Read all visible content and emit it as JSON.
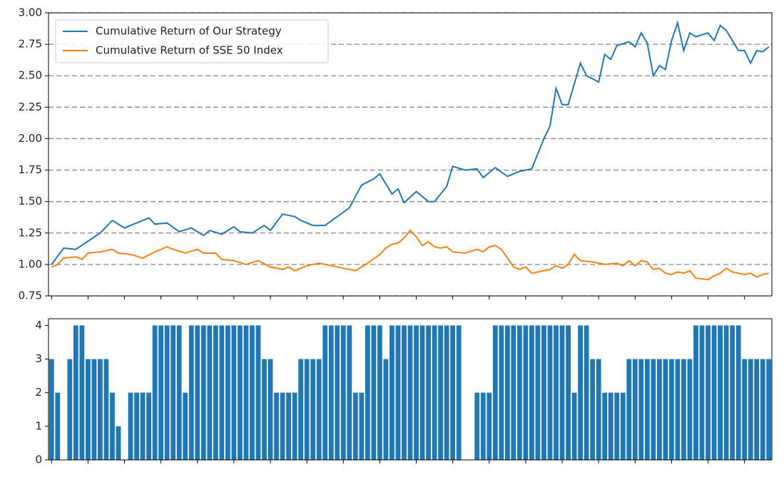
{
  "chart_data": [
    {
      "type": "line",
      "xlim": [
        -0.5,
        118.5
      ],
      "ylim": [
        0.75,
        3.0
      ],
      "xticks": [
        0,
        6,
        12,
        18,
        24,
        30,
        36,
        42,
        48,
        54,
        60,
        66,
        72,
        78,
        84,
        90,
        96,
        102,
        108,
        114
      ],
      "yticks": [
        {
          "value": 0.75,
          "label": "0.75"
        },
        {
          "value": 1.0,
          "label": "1.00"
        },
        {
          "value": 1.25,
          "label": "1.25"
        },
        {
          "value": 1.5,
          "label": "1.50"
        },
        {
          "value": 1.75,
          "label": "1.75"
        },
        {
          "value": 2.0,
          "label": "2.00"
        },
        {
          "value": 2.25,
          "label": "2.25"
        },
        {
          "value": 2.5,
          "label": "2.50"
        },
        {
          "value": 2.75,
          "label": "2.75"
        },
        {
          "value": 3.0,
          "label": "3.00"
        }
      ],
      "grid": true,
      "legend": "upper left",
      "series": [
        {
          "name": "Cumulative Return of Our Strategy",
          "color": "#1f77b4",
          "x": [
            0,
            2,
            4,
            8,
            10,
            12,
            14,
            16,
            17,
            19,
            21,
            23,
            25,
            26,
            28,
            30,
            31,
            33,
            35,
            36,
            38,
            40,
            41,
            43,
            45,
            47,
            49,
            51,
            53,
            54,
            56,
            57,
            58,
            60,
            62,
            63,
            65,
            66,
            68,
            70,
            71,
            73,
            75,
            77,
            78,
            79,
            81,
            82,
            83,
            84,
            85,
            87,
            88,
            90,
            91,
            92,
            93,
            95,
            96,
            97,
            98,
            99,
            100,
            101,
            102,
            103,
            104,
            105,
            106,
            108,
            109,
            110,
            111,
            113,
            114,
            115,
            116,
            117,
            118
          ],
          "values": [
            1.0,
            1.13,
            1.12,
            1.25,
            1.35,
            1.29,
            1.33,
            1.37,
            1.32,
            1.33,
            1.26,
            1.29,
            1.23,
            1.27,
            1.24,
            1.3,
            1.26,
            1.25,
            1.31,
            1.27,
            1.4,
            1.38,
            1.35,
            1.31,
            1.31,
            1.38,
            1.45,
            1.63,
            1.68,
            1.72,
            1.56,
            1.6,
            1.49,
            1.58,
            1.5,
            1.5,
            1.62,
            1.78,
            1.75,
            1.76,
            1.69,
            1.77,
            1.7,
            1.74,
            1.75,
            1.76,
            2.0,
            2.1,
            2.4,
            2.27,
            2.27,
            2.6,
            2.5,
            2.45,
            2.67,
            2.63,
            2.74,
            2.77,
            2.73,
            2.84,
            2.76,
            2.5,
            2.58,
            2.55,
            2.78,
            2.92,
            2.7,
            2.84,
            2.81,
            2.84,
            2.78,
            2.9,
            2.86,
            2.7,
            2.7,
            2.6,
            2.7,
            2.69,
            2.73
          ]
        },
        {
          "name": "Cumulative Return of SSE 50 Index",
          "color": "#ff7f0e",
          "x": [
            0,
            1,
            2,
            4,
            5,
            6,
            8,
            10,
            11,
            13,
            15,
            17,
            19,
            20,
            22,
            24,
            25,
            27,
            28,
            30,
            32,
            34,
            36,
            38,
            39,
            40,
            42,
            44,
            46,
            48,
            50,
            52,
            54,
            55,
            56,
            57,
            58,
            59,
            60,
            61,
            62,
            63,
            64,
            65,
            66,
            68,
            70,
            71,
            72,
            73,
            74,
            75,
            76,
            77,
            78,
            79,
            80,
            82,
            83,
            84,
            85,
            86,
            87,
            89,
            90,
            91,
            93,
            94,
            95,
            96,
            97,
            98,
            99,
            100,
            101,
            102,
            103,
            104,
            105,
            106,
            108,
            109,
            110,
            111,
            112,
            113,
            114,
            115,
            116,
            117,
            118
          ],
          "values": [
            0.98,
            1.0,
            1.05,
            1.06,
            1.04,
            1.09,
            1.1,
            1.12,
            1.09,
            1.08,
            1.05,
            1.1,
            1.14,
            1.12,
            1.09,
            1.12,
            1.09,
            1.09,
            1.04,
            1.03,
            1.0,
            1.03,
            0.98,
            0.96,
            0.98,
            0.95,
            0.99,
            1.01,
            0.99,
            0.97,
            0.95,
            1.01,
            1.08,
            1.13,
            1.16,
            1.17,
            1.21,
            1.27,
            1.22,
            1.15,
            1.18,
            1.14,
            1.13,
            1.14,
            1.1,
            1.09,
            1.12,
            1.1,
            1.14,
            1.15,
            1.12,
            1.05,
            0.98,
            0.96,
            0.98,
            0.93,
            0.94,
            0.96,
            0.99,
            0.97,
            1.0,
            1.08,
            1.03,
            1.02,
            1.01,
            1.0,
            1.01,
            0.99,
            1.03,
            0.99,
            1.03,
            1.02,
            0.96,
            0.97,
            0.93,
            0.92,
            0.94,
            0.93,
            0.95,
            0.89,
            0.88,
            0.91,
            0.93,
            0.97,
            0.94,
            0.93,
            0.92,
            0.93,
            0.9,
            0.92,
            0.93
          ]
        }
      ]
    },
    {
      "type": "bar",
      "color": "#1f77b4",
      "xlim": [
        -0.5,
        118.5
      ],
      "ylim": [
        0,
        4.2
      ],
      "xticks": [
        0,
        6,
        12,
        18,
        24,
        30,
        36,
        42,
        48,
        54,
        60,
        66,
        72,
        78,
        84,
        90,
        96,
        102,
        108,
        114
      ],
      "yticks": [
        0,
        1,
        2,
        3,
        4
      ],
      "values": [
        3,
        2,
        0,
        3,
        4,
        4,
        3,
        3,
        3,
        3,
        2,
        1,
        0,
        2,
        2,
        2,
        2,
        4,
        4,
        4,
        4,
        4,
        2,
        4,
        4,
        4,
        4,
        4,
        4,
        4,
        4,
        4,
        4,
        4,
        4,
        3,
        3,
        2,
        2,
        2,
        2,
        3,
        3,
        3,
        3,
        4,
        4,
        4,
        4,
        4,
        2,
        2,
        4,
        4,
        4,
        3,
        4,
        4,
        4,
        4,
        4,
        4,
        4,
        4,
        4,
        4,
        4,
        4,
        0,
        0,
        2,
        2,
        2,
        4,
        4,
        4,
        4,
        4,
        4,
        4,
        4,
        4,
        4,
        4,
        4,
        4,
        2,
        4,
        4,
        3,
        3,
        2,
        2,
        2,
        2,
        3,
        3,
        3,
        3,
        3,
        3,
        3,
        3,
        3,
        3,
        3,
        4,
        4,
        4,
        4,
        4,
        4,
        4,
        4,
        3,
        3,
        3,
        3,
        3
      ]
    }
  ]
}
